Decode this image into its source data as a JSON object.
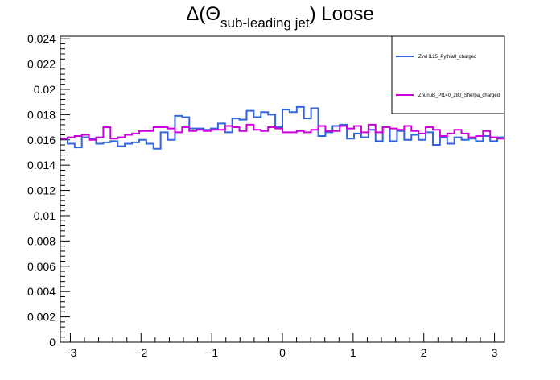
{
  "title": {
    "prefix": "Δ(Θ",
    "subscript": "sub-leading jet",
    "suffix": ") Loose"
  },
  "colors": {
    "series1": "#3366dd",
    "series2": "#cc00dd",
    "axis": "#000000",
    "background": "#ffffff"
  },
  "chart_data": {
    "type": "line",
    "style": "step-histogram",
    "title": "Δ(Θ sub-leading jet) Loose",
    "xlabel": "",
    "ylabel": "",
    "xlim": [
      -3.14159,
      3.14159
    ],
    "ylim": [
      0,
      0.0242
    ],
    "x_ticks": [
      -3,
      -2,
      -1,
      0,
      1,
      2,
      3
    ],
    "x_tick_labels": [
      "−3",
      "−2",
      "−1",
      "0",
      "1",
      "2",
      "3"
    ],
    "y_ticks": [
      0,
      0.002,
      0.004,
      0.006,
      0.008,
      0.01,
      0.012,
      0.014,
      0.016,
      0.018,
      0.02,
      0.022,
      0.024
    ],
    "y_tick_labels": [
      "0",
      "0.002",
      "0.004",
      "0.006",
      "0.008",
      "0.01",
      "0.012",
      "0.014",
      "0.016",
      "0.018",
      "0.02",
      "0.022",
      "0.024"
    ],
    "grid": false,
    "legend_position": "top-right",
    "bins": 62,
    "series": [
      {
        "name": "ZvvH125_Pythia8_charged",
        "color": "#3366dd",
        "values": [
          0.0161,
          0.0157,
          0.0154,
          0.0162,
          0.0161,
          0.0157,
          0.0158,
          0.0159,
          0.0155,
          0.0157,
          0.0158,
          0.016,
          0.0157,
          0.0153,
          0.0166,
          0.016,
          0.0179,
          0.0178,
          0.0169,
          0.0169,
          0.0168,
          0.0169,
          0.0173,
          0.0166,
          0.0177,
          0.0176,
          0.0183,
          0.0178,
          0.0182,
          0.018,
          0.017,
          0.0184,
          0.0182,
          0.0186,
          0.0177,
          0.0185,
          0.0163,
          0.0166,
          0.0171,
          0.0172,
          0.0161,
          0.0165,
          0.0162,
          0.0168,
          0.0159,
          0.017,
          0.0159,
          0.0167,
          0.016,
          0.0164,
          0.016,
          0.0166,
          0.0156,
          0.0162,
          0.0157,
          0.0162,
          0.016,
          0.0161,
          0.0159,
          0.0163,
          0.0159,
          0.0162
        ]
      },
      {
        "name": "ZnunuB_Pt140_280_Sherpa_charged",
        "color": "#cc00dd",
        "values": [
          0.0161,
          0.0162,
          0.0163,
          0.0164,
          0.016,
          0.0162,
          0.017,
          0.0161,
          0.0162,
          0.0164,
          0.0165,
          0.0167,
          0.0167,
          0.017,
          0.017,
          0.0169,
          0.0166,
          0.017,
          0.0167,
          0.0168,
          0.0167,
          0.0168,
          0.0168,
          0.0171,
          0.017,
          0.0167,
          0.0172,
          0.0168,
          0.0167,
          0.017,
          0.0169,
          0.0166,
          0.0166,
          0.0167,
          0.0166,
          0.0168,
          0.0171,
          0.0167,
          0.0167,
          0.0171,
          0.0169,
          0.0171,
          0.0166,
          0.0172,
          0.0166,
          0.017,
          0.0169,
          0.0168,
          0.0171,
          0.0167,
          0.0165,
          0.017,
          0.0168,
          0.0163,
          0.0165,
          0.0168,
          0.0165,
          0.0162,
          0.0163,
          0.0167,
          0.0162,
          0.0161
        ]
      }
    ]
  }
}
